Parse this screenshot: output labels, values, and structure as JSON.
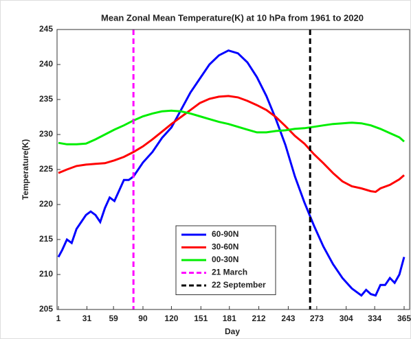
{
  "chart_data": {
    "type": "line",
    "title": "Mean Zonal Mean Temperature(K) at 10 hPa from 1961 to 2020",
    "x_label": "Day",
    "y_label": "Temperature(K)",
    "xlim": [
      1,
      365
    ],
    "ylim": [
      205,
      245
    ],
    "xticks": [
      1,
      31,
      59,
      90,
      120,
      151,
      181,
      212,
      243,
      273,
      304,
      334,
      365
    ],
    "yticks": [
      205,
      210,
      215,
      220,
      225,
      230,
      235,
      240,
      245
    ],
    "legend": "lower center",
    "series": [
      {
        "name": "60-90N",
        "color": "#0000ff",
        "x": [
          1,
          5,
          10,
          15,
          20,
          25,
          30,
          35,
          40,
          45,
          50,
          55,
          60,
          65,
          70,
          75,
          80,
          90,
          100,
          110,
          120,
          130,
          140,
          150,
          160,
          170,
          180,
          190,
          200,
          210,
          220,
          230,
          240,
          250,
          260,
          270,
          280,
          290,
          300,
          310,
          320,
          325,
          330,
          335,
          340,
          345,
          350,
          355,
          360,
          365
        ],
        "values": [
          212.5,
          213.5,
          215,
          214.5,
          216.5,
          217.5,
          218.5,
          219,
          218.5,
          217.5,
          219.5,
          221,
          220.5,
          222,
          223.5,
          223.5,
          224,
          226,
          227.5,
          229.5,
          231,
          233.5,
          236,
          238,
          240,
          241.3,
          242,
          241.6,
          240.3,
          238.2,
          235.5,
          232.2,
          228.5,
          224,
          220.3,
          217,
          214,
          211.5,
          209.5,
          208,
          207,
          207.8,
          207.2,
          207,
          208.5,
          208.5,
          209.5,
          208.8,
          210,
          212.5
        ]
      },
      {
        "name": "30-60N",
        "color": "#ff0000",
        "x": [
          1,
          10,
          20,
          30,
          40,
          50,
          60,
          70,
          80,
          90,
          100,
          110,
          120,
          130,
          140,
          150,
          160,
          170,
          180,
          190,
          200,
          210,
          220,
          230,
          240,
          250,
          260,
          270,
          280,
          290,
          300,
          310,
          320,
          330,
          335,
          340,
          350,
          360,
          365
        ],
        "values": [
          224.5,
          225,
          225.5,
          225.7,
          225.8,
          225.9,
          226.3,
          226.8,
          227.5,
          228.3,
          229.3,
          230.4,
          231.5,
          232.5,
          233.5,
          234.5,
          235.1,
          235.4,
          235.5,
          235.3,
          234.8,
          234.2,
          233.5,
          232.5,
          231.2,
          229.8,
          228.7,
          227.2,
          225.9,
          224.5,
          223.3,
          222.6,
          222.3,
          221.9,
          221.8,
          222.3,
          222.8,
          223.6,
          224.2
        ]
      },
      {
        "name": "00-30N",
        "color": "#00ee00",
        "x": [
          1,
          10,
          20,
          30,
          40,
          50,
          60,
          70,
          80,
          90,
          100,
          110,
          120,
          130,
          140,
          150,
          160,
          170,
          180,
          190,
          200,
          210,
          220,
          230,
          240,
          250,
          260,
          270,
          280,
          290,
          300,
          310,
          320,
          330,
          340,
          350,
          360,
          365
        ],
        "values": [
          228.8,
          228.6,
          228.6,
          228.7,
          229.3,
          230,
          230.7,
          231.3,
          232,
          232.6,
          233,
          233.3,
          233.4,
          233.3,
          233,
          232.6,
          232.2,
          231.8,
          231.5,
          231.1,
          230.7,
          230.3,
          230.3,
          230.5,
          230.6,
          230.8,
          230.9,
          231.1,
          231.3,
          231.5,
          231.6,
          231.7,
          231.6,
          231.3,
          230.8,
          230.2,
          229.6,
          229
        ]
      }
    ],
    "vlines": [
      {
        "name": "21 March",
        "color": "#ff00ff",
        "x": 80
      },
      {
        "name": "22 September",
        "color": "#000000",
        "x": 266
      }
    ]
  }
}
